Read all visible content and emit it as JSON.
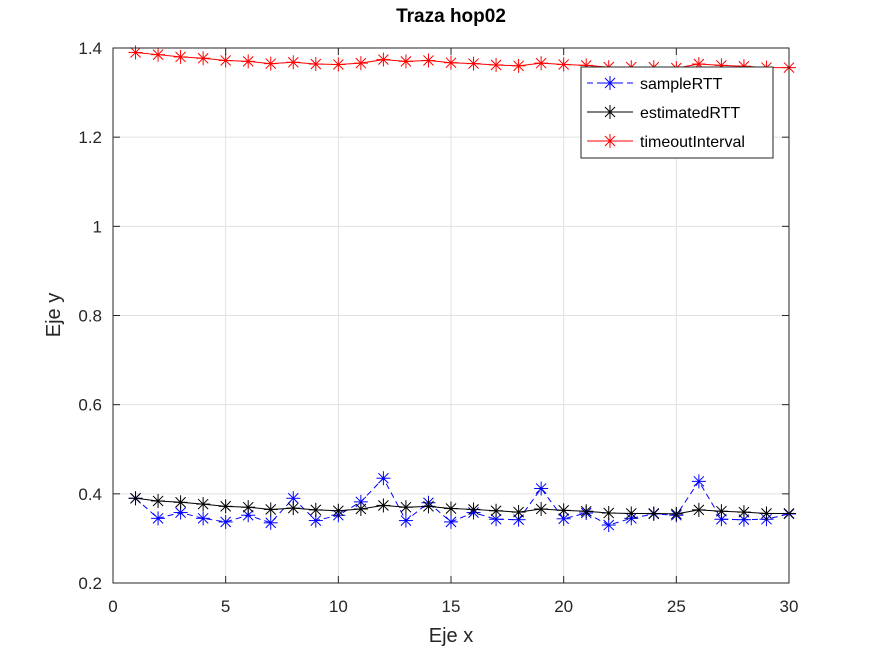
{
  "chart_data": {
    "type": "line",
    "title": "Traza hop02",
    "xlabel": "Eje x",
    "ylabel": "Eje y",
    "xlim": [
      0,
      30
    ],
    "ylim": [
      0.2,
      1.4
    ],
    "xticks": [
      "0",
      "5",
      "10",
      "15",
      "20",
      "25",
      "30"
    ],
    "yticks": [
      "0.2",
      "0.4",
      "0.6",
      "0.8",
      "1",
      "1.2",
      "1.4"
    ],
    "grid": true,
    "legend_position": "top-right",
    "x": [
      1,
      2,
      3,
      4,
      5,
      6,
      7,
      8,
      9,
      10,
      11,
      12,
      13,
      14,
      15,
      16,
      17,
      18,
      19,
      20,
      21,
      22,
      23,
      24,
      25,
      26,
      27,
      28,
      29,
      30
    ],
    "series": [
      {
        "name": "sampleRTT",
        "color": "#0000ff",
        "line_style": "dashed",
        "marker": "asterisk",
        "values": [
          0.39,
          0.345,
          0.358,
          0.345,
          0.337,
          0.352,
          0.335,
          0.39,
          0.34,
          0.352,
          0.382,
          0.435,
          0.34,
          0.38,
          0.337,
          0.358,
          0.343,
          0.342,
          0.412,
          0.344,
          0.357,
          0.33,
          0.345,
          0.355,
          0.352,
          0.428,
          0.343,
          0.342,
          0.343,
          0.355
        ]
      },
      {
        "name": "estimatedRTT",
        "color": "#000000",
        "line_style": "solid",
        "marker": "asterisk",
        "values": [
          0.39,
          0.384,
          0.381,
          0.377,
          0.372,
          0.37,
          0.365,
          0.368,
          0.364,
          0.362,
          0.366,
          0.374,
          0.37,
          0.372,
          0.367,
          0.365,
          0.362,
          0.359,
          0.366,
          0.363,
          0.361,
          0.357,
          0.356,
          0.356,
          0.355,
          0.364,
          0.361,
          0.359,
          0.356,
          0.356
        ]
      },
      {
        "name": "timeoutInterval",
        "color": "#ff0000",
        "line_style": "solid",
        "marker": "asterisk",
        "values": [
          1.39,
          1.385,
          1.38,
          1.377,
          1.372,
          1.37,
          1.365,
          1.368,
          1.364,
          1.363,
          1.366,
          1.374,
          1.37,
          1.372,
          1.367,
          1.365,
          1.362,
          1.36,
          1.366,
          1.363,
          1.361,
          1.357,
          1.357,
          1.357,
          1.355,
          1.364,
          1.361,
          1.359,
          1.356,
          1.356
        ]
      }
    ]
  }
}
